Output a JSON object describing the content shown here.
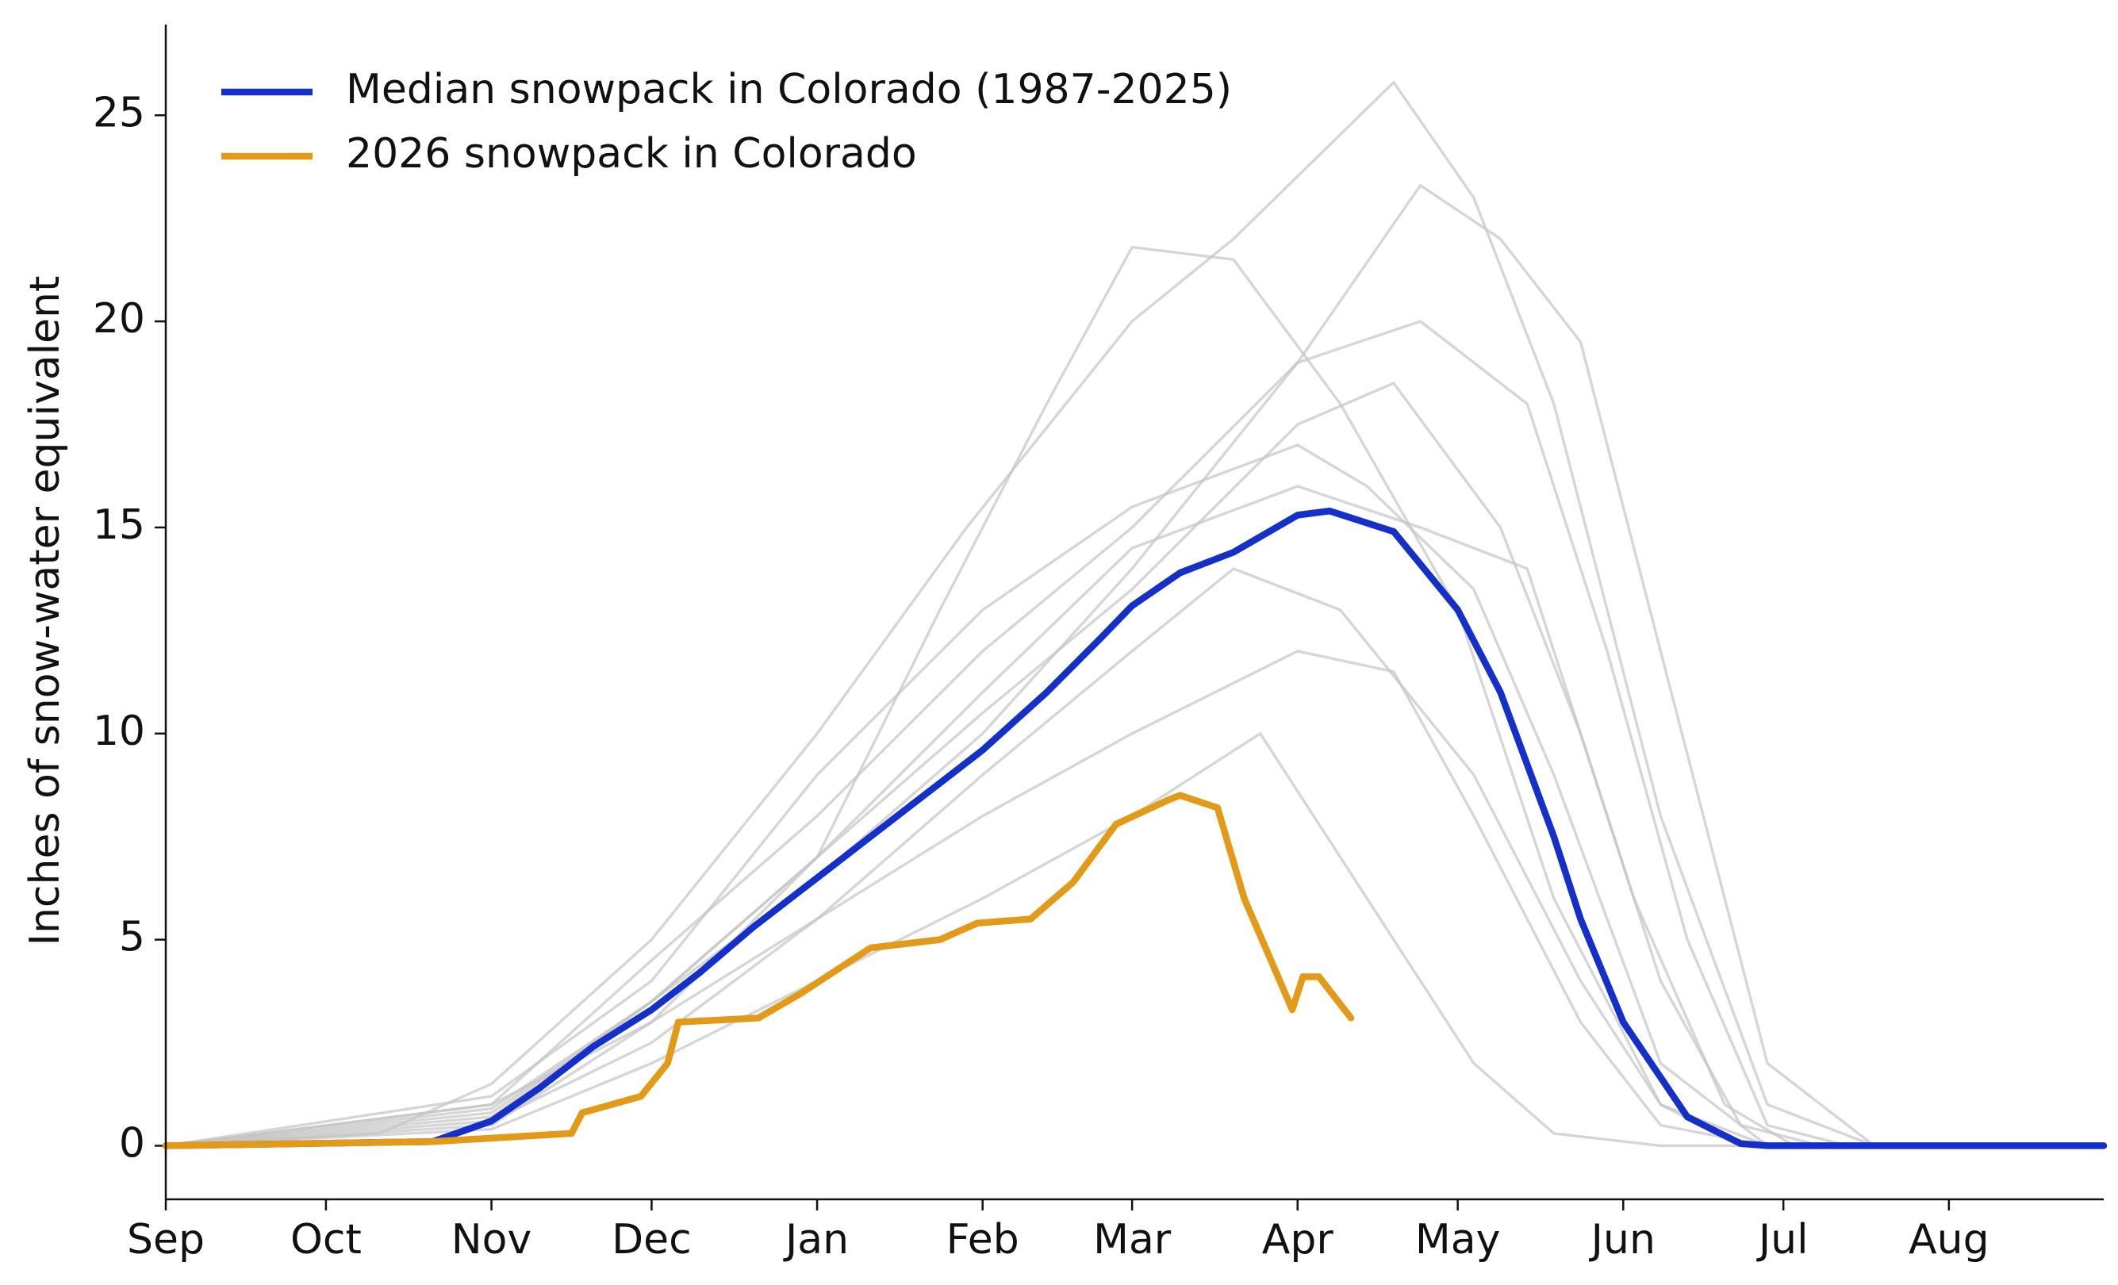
{
  "chart_data": {
    "type": "line",
    "ylabel": "Inches of snow-water equivalent",
    "xlim": [
      0,
      363
    ],
    "ylim": [
      -1.3,
      27.2
    ],
    "xticks": [
      {
        "value": 0,
        "label": "Sep"
      },
      {
        "value": 30,
        "label": "Oct"
      },
      {
        "value": 61,
        "label": "Nov"
      },
      {
        "value": 91,
        "label": "Dec"
      },
      {
        "value": 122,
        "label": "Jan"
      },
      {
        "value": 153,
        "label": "Feb"
      },
      {
        "value": 181,
        "label": "Mar"
      },
      {
        "value": 212,
        "label": "Apr"
      },
      {
        "value": 242,
        "label": "May"
      },
      {
        "value": 273,
        "label": "Jun"
      },
      {
        "value": 303,
        "label": "Jul"
      },
      {
        "value": 334,
        "label": "Aug"
      }
    ],
    "yticks": [
      0,
      5,
      10,
      15,
      20,
      25
    ],
    "grid": false,
    "legend": "upper left",
    "series": [
      {
        "color": "#c4c4c4",
        "x": [
          0,
          40,
          61,
          91,
          122,
          150,
          181,
          200,
          230,
          245,
          260,
          280,
          300,
          320,
          363
        ],
        "values": [
          0,
          0.3,
          1.5,
          5,
          10,
          15,
          20,
          22,
          25.8,
          23,
          18,
          8,
          1,
          0,
          0
        ]
      },
      {
        "color": "#c4c4c4",
        "x": [
          0,
          61,
          91,
          122,
          145,
          165,
          181,
          200,
          220,
          242,
          260,
          280,
          300,
          363
        ],
        "values": [
          0,
          1,
          3,
          7,
          13,
          18,
          21.8,
          21.5,
          18,
          13,
          6,
          1,
          0,
          0
        ]
      },
      {
        "color": "#c4c4c4",
        "x": [
          0,
          61,
          91,
          122,
          153,
          181,
          212,
          235,
          250,
          265,
          280,
          300,
          320,
          363
        ],
        "values": [
          0,
          0.8,
          3.5,
          6.5,
          10,
          14,
          19,
          23.3,
          22,
          19.5,
          12,
          2,
          0,
          0
        ]
      },
      {
        "color": "#c4c4c4",
        "x": [
          0,
          61,
          91,
          122,
          153,
          181,
          212,
          230,
          245,
          265,
          280,
          300,
          363
        ],
        "values": [
          0,
          0.5,
          3,
          5.5,
          8,
          10,
          12,
          11.5,
          8,
          3,
          0.5,
          0,
          0
        ]
      },
      {
        "color": "#c4c4c4",
        "x": [
          0,
          61,
          91,
          122,
          153,
          181,
          205,
          225,
          245,
          260,
          280,
          363
        ],
        "values": [
          0,
          0.4,
          2,
          4,
          6,
          8,
          10,
          6,
          2,
          0.3,
          0,
          0
        ]
      },
      {
        "color": "#c4c4c4",
        "x": [
          0,
          61,
          91,
          122,
          153,
          181,
          212,
          230,
          250,
          265,
          280,
          295,
          310,
          363
        ],
        "values": [
          0,
          0.7,
          3.5,
          7,
          10.5,
          13.5,
          17.5,
          18.5,
          15,
          10,
          4,
          0.5,
          0,
          0
        ]
      },
      {
        "color": "#c4c4c4",
        "x": [
          0,
          61,
          91,
          122,
          153,
          181,
          212,
          235,
          255,
          270,
          285,
          300,
          315,
          363
        ],
        "values": [
          0,
          1,
          4.5,
          8,
          12,
          15,
          19,
          20,
          18,
          12,
          5,
          0.5,
          0,
          0
        ]
      },
      {
        "color": "#c4c4c4",
        "x": [
          0,
          61,
          91,
          122,
          153,
          181,
          200,
          220,
          245,
          265,
          280,
          295,
          363
        ],
        "values": [
          0,
          0.6,
          2.5,
          5.5,
          9,
          12,
          14,
          13,
          9,
          4,
          1,
          0,
          0
        ]
      },
      {
        "color": "#c4c4c4",
        "x": [
          0,
          61,
          91,
          122,
          153,
          181,
          212,
          225,
          245,
          260,
          280,
          300,
          363
        ],
        "values": [
          0,
          1.2,
          4,
          9,
          13,
          15.5,
          17,
          16,
          13.5,
          9,
          2,
          0,
          0
        ]
      },
      {
        "color": "#c4c4c4",
        "x": [
          0,
          61,
          91,
          122,
          153,
          181,
          212,
          235,
          255,
          275,
          292,
          305,
          363
        ],
        "values": [
          0,
          0.9,
          3.5,
          7,
          11,
          14.5,
          16,
          15,
          14,
          6,
          1,
          0,
          0
        ]
      },
      {
        "name": "Median snowpack in Colorado (1987-2025)",
        "color": "#1530c8",
        "x": [
          0,
          50,
          61,
          70,
          80,
          91,
          100,
          110,
          122,
          135,
          145,
          153,
          165,
          175,
          181,
          190,
          200,
          212,
          218,
          230,
          242,
          250,
          260,
          265,
          273,
          285,
          295,
          300,
          363
        ],
        "values": [
          0,
          0.1,
          0.6,
          1.4,
          2.4,
          3.3,
          4.2,
          5.3,
          6.5,
          7.8,
          8.8,
          9.6,
          11.0,
          12.3,
          13.1,
          13.9,
          14.4,
          15.3,
          15.4,
          14.9,
          13.0,
          11.0,
          7.5,
          5.5,
          3.0,
          0.7,
          0.05,
          0,
          0
        ]
      },
      {
        "name": "2026 snowpack in Colorado",
        "color": "#e39a18",
        "x": [
          0,
          50,
          76,
          78,
          89,
          94,
          96,
          111,
          119,
          132,
          145,
          152,
          162,
          170,
          178,
          188,
          190,
          197,
          202,
          207,
          211,
          213,
          216,
          222
        ],
        "values": [
          0,
          0.1,
          0.3,
          0.8,
          1.2,
          2.0,
          3.0,
          3.1,
          3.7,
          4.8,
          5.0,
          5.4,
          5.5,
          6.4,
          7.8,
          8.4,
          8.5,
          8.2,
          6.0,
          4.5,
          3.3,
          4.1,
          4.1,
          3.1
        ]
      }
    ]
  }
}
